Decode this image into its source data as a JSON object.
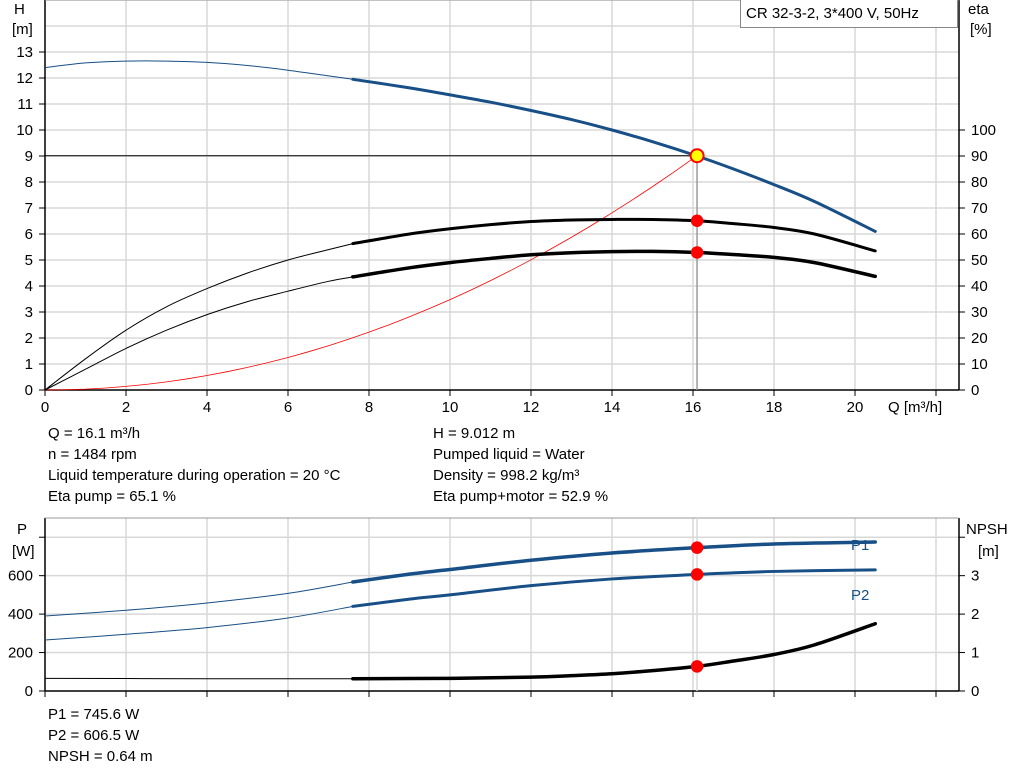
{
  "chart_data": [
    {
      "type": "line",
      "title": "CR 32-3-2, 3*400 V, 50Hz",
      "xlabel": "Q [m³/h]",
      "ylabel_left": [
        "H",
        "[m]"
      ],
      "ylabel_right": [
        "eta",
        "[%]"
      ],
      "xlim": [
        0,
        22
      ],
      "ylim_left": [
        0,
        15
      ],
      "ylim_right": [
        0,
        150
      ],
      "xticks": [
        0,
        2,
        4,
        6,
        8,
        10,
        12,
        14,
        16,
        18,
        20
      ],
      "yticks_left": [
        0,
        1,
        2,
        3,
        4,
        5,
        6,
        7,
        8,
        9,
        10,
        11,
        12,
        13
      ],
      "yticks_right": [
        0,
        10,
        20,
        30,
        40,
        50,
        60,
        70,
        80,
        90,
        100
      ],
      "grid": true,
      "series": [
        {
          "key": "H",
          "axis": "left",
          "color": "#174f86",
          "x": [
            0,
            1,
            2,
            3,
            4,
            5,
            6,
            7,
            7.6,
            9,
            10,
            11,
            12,
            13,
            14,
            15,
            16.1,
            17,
            18,
            19,
            20.5
          ],
          "y": [
            12.4,
            12.58,
            12.65,
            12.65,
            12.6,
            12.48,
            12.3,
            12.08,
            11.95,
            11.62,
            11.35,
            11.07,
            10.75,
            10.4,
            10.0,
            9.55,
            9.0,
            8.5,
            7.9,
            7.25,
            6.1
          ],
          "thick_from": 7.6
        },
        {
          "key": "eta_pump",
          "axis": "right",
          "color": "#000000",
          "x": [
            0,
            1,
            2,
            3,
            4,
            5,
            6,
            7,
            7.6,
            9,
            10,
            11,
            12,
            13,
            14,
            15,
            16.1,
            17,
            18,
            19,
            20.5
          ],
          "y": [
            0,
            12,
            23,
            32,
            39,
            45,
            50,
            54,
            56.3,
            60,
            62,
            63.6,
            64.8,
            65.4,
            65.6,
            65.6,
            65.1,
            64,
            62.5,
            60,
            53.5
          ],
          "thick_from": 7.6
        },
        {
          "key": "eta_pump_motor",
          "axis": "right",
          "color": "#000000",
          "x": [
            0,
            1,
            2,
            3,
            4,
            5,
            6,
            7,
            7.6,
            9,
            10,
            11,
            12,
            13,
            14,
            15,
            16.1,
            17,
            18,
            19,
            20.5
          ],
          "y": [
            0,
            8,
            16,
            23,
            29,
            34,
            38,
            41.8,
            43.5,
            47,
            49,
            50.6,
            52,
            52.8,
            53.2,
            53.3,
            52.9,
            52.1,
            51,
            49,
            43.7
          ],
          "thick_from": 7.6,
          "heavy": true
        },
        {
          "key": "system_curve",
          "axis": "left",
          "color": "#ff0000",
          "formula_h_at_q": 9.012,
          "formula_q": 16.1
        }
      ],
      "operating_point": {
        "Q": 16.1,
        "H": 9.012,
        "eta_pump": 65.1,
        "eta_pump_motor": 52.9
      }
    },
    {
      "type": "line",
      "xlim": [
        0,
        22
      ],
      "ylabel_left": [
        "P",
        "[W]"
      ],
      "ylabel_right": [
        "NPSH",
        "[m]"
      ],
      "ylim_left": [
        0,
        900
      ],
      "ylim_right": [
        0,
        4.5
      ],
      "xticks": [
        0,
        2,
        4,
        6,
        8,
        10,
        12,
        14,
        16,
        18,
        20
      ],
      "yticks_left": [
        0,
        200,
        400,
        600,
        800
      ],
      "yticklabels_left": [
        "0",
        "200",
        "400",
        "600",
        ""
      ],
      "yticks_right": [
        0,
        1,
        2,
        3,
        4
      ],
      "yticklabels_right": [
        "0",
        "1",
        "2",
        "3",
        ""
      ],
      "grid": true,
      "series": [
        {
          "name": "P1",
          "axis": "left",
          "color": "#174f86",
          "x": [
            0,
            2,
            4,
            6,
            7.6,
            9,
            10,
            12,
            14,
            16.1,
            18,
            20.5
          ],
          "y": [
            390,
            420,
            458,
            508,
            567,
            608,
            632,
            680,
            718,
            745.6,
            765,
            775
          ],
          "thick_from": 7.6,
          "heavy": true
        },
        {
          "name": "P2",
          "axis": "left",
          "color": "#174f86",
          "x": [
            0,
            2,
            4,
            6,
            7.6,
            9,
            10,
            12,
            14,
            16.1,
            18,
            20.5
          ],
          "y": [
            265,
            295,
            330,
            380,
            440,
            478,
            500,
            548,
            583,
            606.5,
            622,
            630
          ],
          "thick_from": 7.6
        },
        {
          "key": "NPSH",
          "axis": "right",
          "color": "#000000",
          "x": [
            0,
            4,
            7.6,
            10,
            12,
            13,
            14,
            15,
            16.1,
            17,
            18,
            19,
            20.5
          ],
          "y": [
            0.33,
            0.32,
            0.32,
            0.33,
            0.36,
            0.4,
            0.45,
            0.53,
            0.64,
            0.78,
            0.95,
            1.2,
            1.75
          ],
          "thick_from": 7.6,
          "heavy": true
        }
      ],
      "operating_point": {
        "Q": 16.1,
        "P1": 745.6,
        "P2": 606.5,
        "NPSH": 0.64
      }
    }
  ],
  "info_top_left": [
    "Q = 16.1 m³/h",
    "n = 1484 rpm",
    "Liquid temperature during operation = 20 °C",
    "Eta pump = 65.1 %"
  ],
  "info_top_right": [
    "H = 9.012 m",
    "Pumped liquid = Water",
    "Density = 998.2 kg/m³",
    "Eta pump+motor = 52.9 %"
  ],
  "info_bottom": [
    "P1 = 745.6 W",
    "P2 = 606.5 W",
    "NPSH = 0.64 m"
  ],
  "colors": {
    "marker": "#ff0000",
    "operating_point_fill": "#ffff00",
    "grid": "#d8d8d8"
  }
}
